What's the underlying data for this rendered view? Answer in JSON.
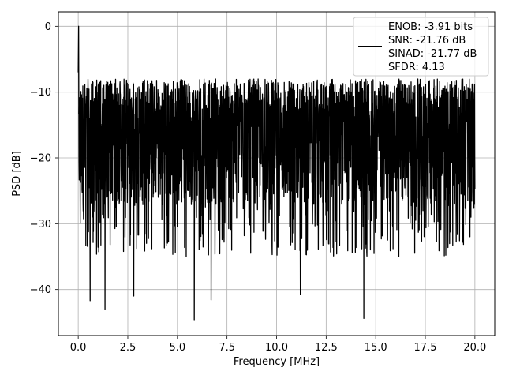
{
  "chart_data": {
    "type": "line",
    "title": "",
    "xlabel": "Frequency [MHz]",
    "ylabel": "PSD [dB]",
    "xlim": [
      -1.0,
      21.0
    ],
    "ylim": [
      -47.0,
      2.2
    ],
    "x_ticks": [
      0.0,
      2.5,
      5.0,
      7.5,
      10.0,
      12.5,
      15.0,
      17.5,
      20.0
    ],
    "x_tick_labels": [
      "0.0",
      "2.5",
      "5.0",
      "7.5",
      "10.0",
      "12.5",
      "15.0",
      "17.5",
      "20.0"
    ],
    "y_ticks": [
      0,
      -10,
      -20,
      -30,
      -40
    ],
    "y_tick_labels": [
      "0",
      "−10",
      "−20",
      "−30",
      "−40"
    ],
    "grid": true,
    "legend_position": "top-right",
    "line_color": "#000000",
    "legend_lines": [
      "ENOB: -3.91 bits",
      "SNR: -21.76 dB",
      "SINAD: -21.77 dB",
      "SFDR: 4.13"
    ],
    "series": [
      {
        "x_start": 0.0,
        "x_end": 20.0,
        "sample_count": 2400,
        "description": "noise-like spectrum",
        "peak": {
          "x": 0.02,
          "y": 0.0
        },
        "upper_envelope_y": -8.0,
        "lower_envelope_y": -27.0,
        "min_points": [
          {
            "x": 0.6,
            "y": -41.7
          },
          {
            "x": 1.35,
            "y": -43.0
          },
          {
            "x": 2.8,
            "y": -41.0
          },
          {
            "x": 5.85,
            "y": -44.6
          },
          {
            "x": 6.7,
            "y": -41.6
          },
          {
            "x": 11.2,
            "y": -40.8
          },
          {
            "x": 14.4,
            "y": -44.4
          }
        ]
      }
    ]
  }
}
